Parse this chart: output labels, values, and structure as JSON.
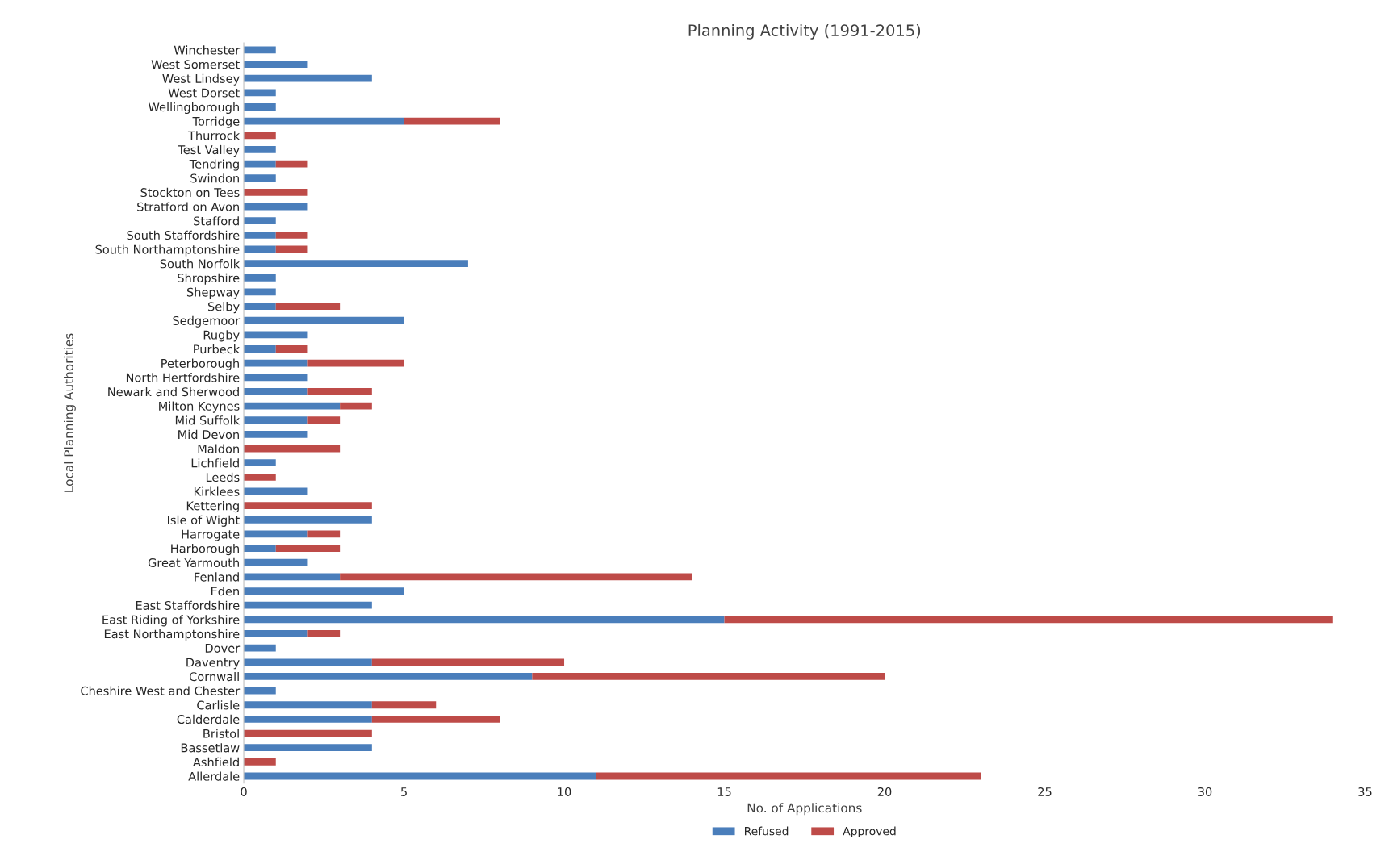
{
  "chart_data": {
    "type": "bar",
    "orientation": "horizontal",
    "stacked": true,
    "title": "Planning Activity (1991-2015)",
    "xlabel": "No. of Applications",
    "ylabel": "Local Planning Authorities",
    "categories": [
      "Winchester",
      "West Somerset",
      "West Lindsey",
      "West Dorset",
      "Wellingborough",
      "Torridge",
      "Thurrock",
      "Test Valley",
      "Tendring",
      "Swindon",
      "Stockton on Tees",
      "Stratford on Avon",
      "Stafford",
      "South Staffordshire",
      "South Northamptonshire",
      "South Norfolk",
      "Shropshire",
      "Shepway",
      "Selby",
      "Sedgemoor",
      "Rugby",
      "Purbeck",
      "Peterborough",
      "North Hertfordshire",
      "Newark and Sherwood",
      "Milton Keynes",
      "Mid Suffolk",
      "Mid Devon",
      "Maldon",
      "Lichfield",
      "Leeds",
      "Kirklees",
      "Kettering",
      "Isle of Wight",
      "Harrogate",
      "Harborough",
      "Great Yarmouth",
      "Fenland",
      "Eden",
      "East Staffordshire",
      "East Riding of Yorkshire",
      "East Northamptonshire",
      "Dover",
      "Daventry",
      "Cornwall",
      "Cheshire West and Chester",
      "Carlisle",
      "Calderdale",
      "Bristol",
      "Bassetlaw",
      "Ashfield",
      "Allerdale"
    ],
    "series": [
      {
        "name": "Refused",
        "color": "#4a7ebb",
        "values": [
          1,
          2,
          4,
          1,
          1,
          5,
          null,
          1,
          1,
          1,
          null,
          2,
          1,
          1,
          1,
          7,
          1,
          1,
          1,
          5,
          2,
          1,
          2,
          2,
          2,
          3,
          2,
          2,
          null,
          1,
          null,
          2,
          null,
          4,
          2,
          1,
          2,
          3,
          5,
          4,
          15,
          2,
          1,
          4,
          9,
          1,
          4,
          4,
          null,
          4,
          null,
          11
        ]
      },
      {
        "name": "Approved",
        "color": "#be4b48",
        "values": [
          null,
          null,
          null,
          null,
          null,
          3,
          1,
          null,
          1,
          null,
          2,
          null,
          null,
          1,
          1,
          null,
          null,
          null,
          2,
          null,
          null,
          1,
          3,
          null,
          2,
          1,
          1,
          null,
          3,
          null,
          1,
          null,
          4,
          null,
          1,
          2,
          null,
          11,
          null,
          null,
          19,
          1,
          null,
          6,
          11,
          null,
          2,
          4,
          4,
          null,
          1,
          12
        ]
      }
    ],
    "xlim": [
      0,
      35
    ],
    "xticks": [
      0,
      5,
      10,
      15,
      20,
      25,
      30,
      35
    ],
    "legend": "bottom",
    "grid": false
  }
}
